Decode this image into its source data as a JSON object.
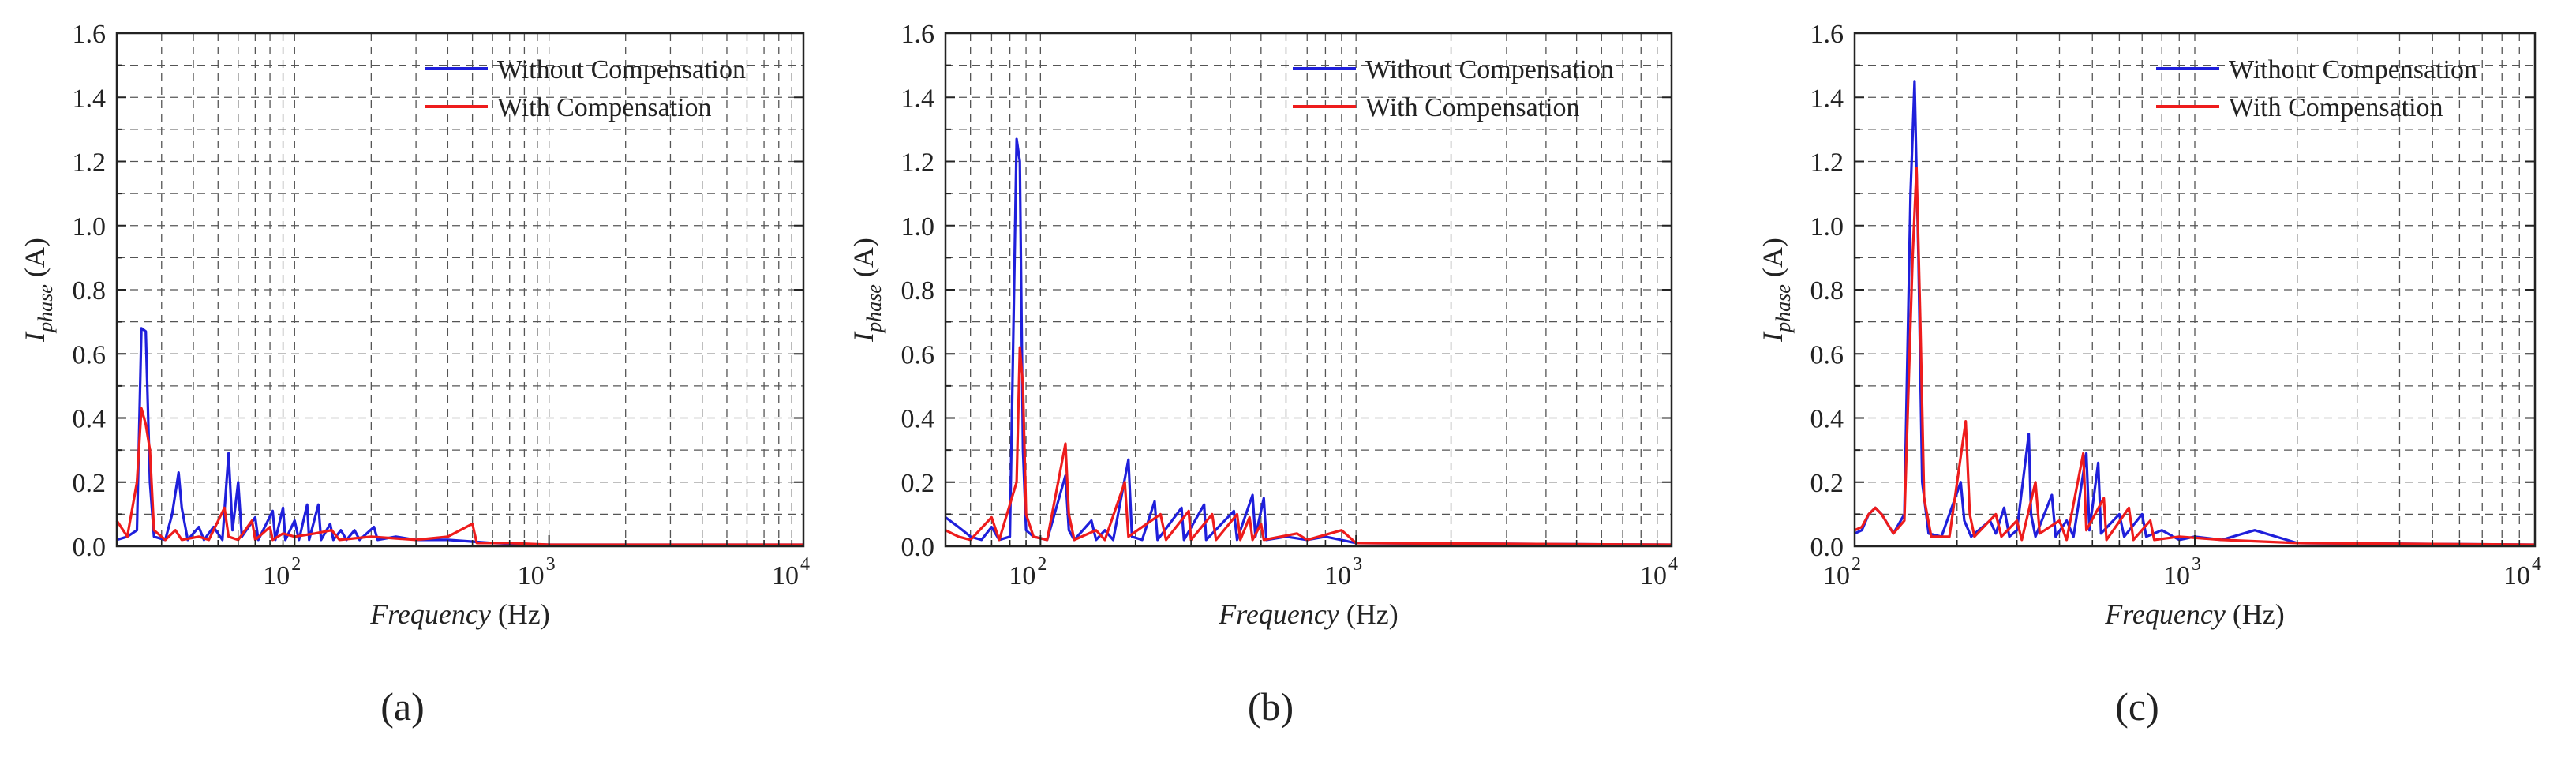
{
  "figure": {
    "colors": {
      "without": "#1f1fdb",
      "with": "#ee1c1c",
      "grid": "#555555",
      "axis": "#222222"
    },
    "series_names": [
      "Without Compensation",
      "With Compensation"
    ]
  },
  "chart_data": [
    {
      "type": "line",
      "panel_label": "(a)",
      "xlabel": "Frequency",
      "xlabel_unit": "(Hz)",
      "ylabel": "I",
      "ylabel_sub": "phase",
      "ylabel_unit": "(A)",
      "xscale": "log",
      "xlim": [
        20,
        10000
      ],
      "ylim": [
        0,
        1.6
      ],
      "yticks": [
        "0.0",
        "0.2",
        "0.4",
        "0.6",
        "0.8",
        "1.0",
        "1.2",
        "1.4",
        "1.6"
      ],
      "xticks": [
        {
          "base": "10",
          "exp": "2"
        },
        {
          "base": "10",
          "exp": "3"
        },
        {
          "base": "10",
          "exp": "4"
        }
      ],
      "legend": "top-right",
      "grid": true,
      "series": [
        {
          "name": "Without Compensation",
          "points": [
            [
              20,
              0.02
            ],
            [
              22,
              0.03
            ],
            [
              24,
              0.05
            ],
            [
              25,
              0.68
            ],
            [
              26,
              0.67
            ],
            [
              27,
              0.2
            ],
            [
              28,
              0.03
            ],
            [
              31,
              0.02
            ],
            [
              33,
              0.1
            ],
            [
              35,
              0.23
            ],
            [
              36,
              0.12
            ],
            [
              38,
              0.02
            ],
            [
              42,
              0.06
            ],
            [
              44,
              0.02
            ],
            [
              48,
              0.06
            ],
            [
              52,
              0.02
            ],
            [
              55,
              0.29
            ],
            [
              57,
              0.05
            ],
            [
              60,
              0.2
            ],
            [
              62,
              0.03
            ],
            [
              70,
              0.09
            ],
            [
              72,
              0.02
            ],
            [
              82,
              0.11
            ],
            [
              84,
              0.02
            ],
            [
              90,
              0.12
            ],
            [
              92,
              0.02
            ],
            [
              100,
              0.08
            ],
            [
              104,
              0.02
            ],
            [
              112,
              0.13
            ],
            [
              114,
              0.02
            ],
            [
              124,
              0.13
            ],
            [
              127,
              0.02
            ],
            [
              138,
              0.07
            ],
            [
              142,
              0.02
            ],
            [
              152,
              0.05
            ],
            [
              160,
              0.02
            ],
            [
              172,
              0.05
            ],
            [
              180,
              0.02
            ],
            [
              205,
              0.06
            ],
            [
              212,
              0.02
            ],
            [
              250,
              0.03
            ],
            [
              300,
              0.02
            ],
            [
              400,
              0.02
            ],
            [
              600,
              0.01
            ],
            [
              1000,
              0.005
            ],
            [
              10000,
              0.005
            ]
          ]
        },
        {
          "name": "With Compensation",
          "points": [
            [
              20,
              0.08
            ],
            [
              22,
              0.03
            ],
            [
              24,
              0.2
            ],
            [
              25,
              0.43
            ],
            [
              26,
              0.38
            ],
            [
              27,
              0.3
            ],
            [
              28,
              0.05
            ],
            [
              31,
              0.02
            ],
            [
              34,
              0.05
            ],
            [
              36,
              0.02
            ],
            [
              42,
              0.03
            ],
            [
              46,
              0.02
            ],
            [
              53,
              0.12
            ],
            [
              55,
              0.03
            ],
            [
              60,
              0.02
            ],
            [
              68,
              0.08
            ],
            [
              70,
              0.02
            ],
            [
              80,
              0.06
            ],
            [
              82,
              0.02
            ],
            [
              90,
              0.04
            ],
            [
              100,
              0.03
            ],
            [
              120,
              0.04
            ],
            [
              140,
              0.05
            ],
            [
              150,
              0.02
            ],
            [
              200,
              0.03
            ],
            [
              300,
              0.02
            ],
            [
              400,
              0.03
            ],
            [
              500,
              0.07
            ],
            [
              520,
              0.01
            ],
            [
              700,
              0.01
            ],
            [
              1000,
              0.005
            ],
            [
              10000,
              0.005
            ]
          ]
        }
      ]
    },
    {
      "type": "line",
      "panel_label": "(b)",
      "xlabel": "Frequency",
      "xlabel_unit": "(Hz)",
      "ylabel": "I",
      "ylabel_sub": "phase",
      "ylabel_unit": "(A)",
      "xscale": "log",
      "xlim": [
        50,
        10000
      ],
      "ylim": [
        0,
        1.6
      ],
      "yticks": [
        "0.0",
        "0.2",
        "0.4",
        "0.6",
        "0.8",
        "1.0",
        "1.2",
        "1.4",
        "1.6"
      ],
      "xticks": [
        {
          "base": "10",
          "exp": "2"
        },
        {
          "base": "10",
          "exp": "3"
        },
        {
          "base": "10",
          "exp": "4"
        }
      ],
      "legend": "top-right",
      "grid": true,
      "series": [
        {
          "name": "Without Compensation",
          "points": [
            [
              50,
              0.09
            ],
            [
              55,
              0.06
            ],
            [
              60,
              0.03
            ],
            [
              65,
              0.02
            ],
            [
              70,
              0.06
            ],
            [
              74,
              0.02
            ],
            [
              80,
              0.03
            ],
            [
              84,
              1.27
            ],
            [
              86,
              1.2
            ],
            [
              88,
              0.3
            ],
            [
              90,
              0.05
            ],
            [
              95,
              0.03
            ],
            [
              105,
              0.02
            ],
            [
              120,
              0.22
            ],
            [
              123,
              0.05
            ],
            [
              128,
              0.02
            ],
            [
              145,
              0.08
            ],
            [
              150,
              0.02
            ],
            [
              160,
              0.05
            ],
            [
              170,
              0.02
            ],
            [
              190,
              0.27
            ],
            [
              195,
              0.03
            ],
            [
              210,
              0.02
            ],
            [
              230,
              0.14
            ],
            [
              235,
              0.02
            ],
            [
              280,
              0.12
            ],
            [
              285,
              0.02
            ],
            [
              330,
              0.13
            ],
            [
              335,
              0.02
            ],
            [
              410,
              0.11
            ],
            [
              420,
              0.02
            ],
            [
              470,
              0.16
            ],
            [
              480,
              0.03
            ],
            [
              510,
              0.15
            ],
            [
              520,
              0.02
            ],
            [
              600,
              0.03
            ],
            [
              700,
              0.02
            ],
            [
              800,
              0.03
            ],
            [
              1000,
              0.01
            ],
            [
              10000,
              0.005
            ]
          ]
        },
        {
          "name": "With Compensation",
          "points": [
            [
              50,
              0.05
            ],
            [
              55,
              0.03
            ],
            [
              60,
              0.02
            ],
            [
              70,
              0.09
            ],
            [
              74,
              0.02
            ],
            [
              84,
              0.2
            ],
            [
              86,
              0.62
            ],
            [
              88,
              0.5
            ],
            [
              90,
              0.1
            ],
            [
              95,
              0.03
            ],
            [
              105,
              0.02
            ],
            [
              120,
              0.32
            ],
            [
              123,
              0.1
            ],
            [
              128,
              0.02
            ],
            [
              150,
              0.05
            ],
            [
              160,
              0.02
            ],
            [
              185,
              0.2
            ],
            [
              190,
              0.03
            ],
            [
              240,
              0.1
            ],
            [
              250,
              0.02
            ],
            [
              295,
              0.11
            ],
            [
              300,
              0.02
            ],
            [
              350,
              0.1
            ],
            [
              360,
              0.02
            ],
            [
              420,
              0.1
            ],
            [
              430,
              0.02
            ],
            [
              460,
              0.09
            ],
            [
              470,
              0.02
            ],
            [
              500,
              0.07
            ],
            [
              510,
              0.02
            ],
            [
              650,
              0.04
            ],
            [
              700,
              0.02
            ],
            [
              900,
              0.05
            ],
            [
              1000,
              0.01
            ],
            [
              10000,
              0.005
            ]
          ]
        }
      ]
    },
    {
      "type": "line",
      "panel_label": "(c)",
      "xlabel": "Frequency",
      "xlabel_unit": "(Hz)",
      "ylabel": "I",
      "ylabel_sub": "phase",
      "ylabel_unit": "(A)",
      "xscale": "log",
      "xlim": [
        100,
        10000
      ],
      "ylim": [
        0,
        1.6
      ],
      "yticks": [
        "0.0",
        "0.2",
        "0.4",
        "0.6",
        "0.8",
        "1.0",
        "1.2",
        "1.4",
        "1.6"
      ],
      "xticks": [
        {
          "base": "10",
          "exp": "2"
        },
        {
          "base": "10",
          "exp": "3"
        },
        {
          "base": "10",
          "exp": "4"
        }
      ],
      "legend": "top-right",
      "grid": true,
      "series": [
        {
          "name": "Without Compensation",
          "points": [
            [
              100,
              0.04
            ],
            [
              105,
              0.05
            ],
            [
              110,
              0.1
            ],
            [
              115,
              0.12
            ],
            [
              120,
              0.1
            ],
            [
              130,
              0.04
            ],
            [
              140,
              0.1
            ],
            [
              146,
              1.1
            ],
            [
              150,
              1.45
            ],
            [
              154,
              0.9
            ],
            [
              158,
              0.2
            ],
            [
              165,
              0.04
            ],
            [
              180,
              0.03
            ],
            [
              205,
              0.2
            ],
            [
              210,
              0.08
            ],
            [
              220,
              0.03
            ],
            [
              250,
              0.08
            ],
            [
              260,
              0.04
            ],
            [
              275,
              0.12
            ],
            [
              285,
              0.03
            ],
            [
              300,
              0.05
            ],
            [
              325,
              0.35
            ],
            [
              330,
              0.1
            ],
            [
              340,
              0.03
            ],
            [
              380,
              0.16
            ],
            [
              390,
              0.03
            ],
            [
              420,
              0.08
            ],
            [
              440,
              0.03
            ],
            [
              480,
              0.29
            ],
            [
              490,
              0.05
            ],
            [
              520,
              0.26
            ],
            [
              530,
              0.04
            ],
            [
              600,
              0.1
            ],
            [
              620,
              0.03
            ],
            [
              700,
              0.1
            ],
            [
              720,
              0.03
            ],
            [
              800,
              0.05
            ],
            [
              900,
              0.02
            ],
            [
              1000,
              0.03
            ],
            [
              1200,
              0.02
            ],
            [
              1500,
              0.05
            ],
            [
              2000,
              0.01
            ],
            [
              10000,
              0.005
            ]
          ]
        },
        {
          "name": "With Compensation",
          "points": [
            [
              100,
              0.05
            ],
            [
              105,
              0.06
            ],
            [
              110,
              0.1
            ],
            [
              115,
              0.12
            ],
            [
              120,
              0.1
            ],
            [
              130,
              0.04
            ],
            [
              140,
              0.08
            ],
            [
              148,
              0.9
            ],
            [
              152,
              1.18
            ],
            [
              156,
              0.7
            ],
            [
              160,
              0.15
            ],
            [
              168,
              0.03
            ],
            [
              190,
              0.03
            ],
            [
              212,
              0.39
            ],
            [
              218,
              0.1
            ],
            [
              225,
              0.03
            ],
            [
              260,
              0.1
            ],
            [
              270,
              0.03
            ],
            [
              300,
              0.08
            ],
            [
              310,
              0.02
            ],
            [
              340,
              0.2
            ],
            [
              350,
              0.04
            ],
            [
              400,
              0.08
            ],
            [
              420,
              0.02
            ],
            [
              470,
              0.29
            ],
            [
              480,
              0.05
            ],
            [
              540,
              0.15
            ],
            [
              550,
              0.02
            ],
            [
              640,
              0.12
            ],
            [
              660,
              0.02
            ],
            [
              740,
              0.08
            ],
            [
              760,
              0.02
            ],
            [
              900,
              0.03
            ],
            [
              1200,
              0.02
            ],
            [
              2000,
              0.01
            ],
            [
              10000,
              0.005
            ]
          ]
        }
      ]
    }
  ]
}
